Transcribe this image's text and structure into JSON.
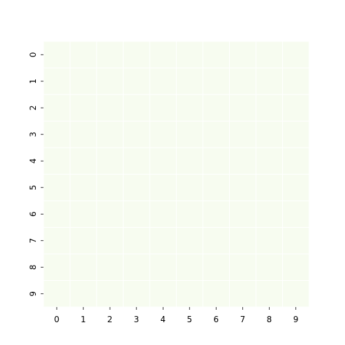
{
  "chart_data": {
    "type": "heatmap",
    "title": "",
    "xlabel": "",
    "ylabel": "",
    "x_categories": [
      "0",
      "1",
      "2",
      "3",
      "4",
      "5",
      "6",
      "7",
      "8",
      "9"
    ],
    "y_categories": [
      "0",
      "1",
      "2",
      "3",
      "4",
      "5",
      "6",
      "7",
      "8",
      "9"
    ],
    "values": [
      [
        0,
        0,
        0,
        0,
        0,
        0,
        0,
        0,
        0,
        0
      ],
      [
        0,
        0,
        0,
        0,
        0,
        0,
        0,
        0,
        0,
        0
      ],
      [
        0,
        0,
        0,
        0,
        0,
        0,
        0,
        0,
        0,
        0
      ],
      [
        0,
        0,
        0,
        0,
        0,
        0,
        0,
        0,
        0,
        0
      ],
      [
        0,
        0,
        0,
        0,
        0,
        0,
        0,
        0,
        0,
        0
      ],
      [
        0,
        0,
        0,
        0,
        0,
        0,
        0,
        0,
        0,
        0
      ],
      [
        0,
        0,
        0,
        0,
        0,
        0,
        0,
        0,
        0,
        0
      ],
      [
        0,
        0,
        0,
        0,
        0,
        0,
        0,
        0,
        0,
        0
      ],
      [
        0,
        0,
        0,
        0,
        0,
        0,
        0,
        0,
        0,
        0
      ],
      [
        0,
        0,
        0,
        0,
        0,
        0,
        0,
        0,
        0,
        0
      ]
    ],
    "cell_color": "#f7fcf0",
    "cell_border_color": "#ffffff",
    "tick_color": "#000000",
    "colorbar": false,
    "grid": false,
    "legend": "none"
  }
}
